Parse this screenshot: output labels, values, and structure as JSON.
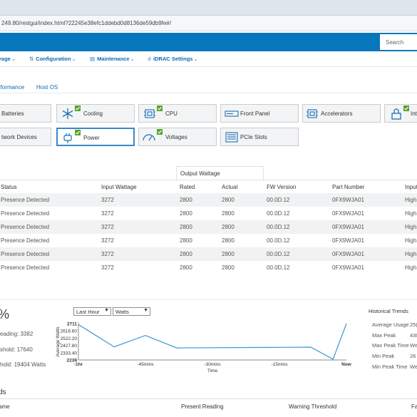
{
  "browser": {
    "url": "249.80/restgui/index.html?22245e38efc1ddebd0d8136de59db9fe#/"
  },
  "header": {
    "search_placeholder": "Search"
  },
  "nav": {
    "items": [
      {
        "label": "rage",
        "icon": "storage-icon"
      },
      {
        "label": "Configuration",
        "icon": "configuration-icon"
      },
      {
        "label": "Maintenance",
        "icon": "maintenance-icon"
      },
      {
        "label": "iDRAC Settings",
        "icon": "idrac-settings-icon"
      }
    ]
  },
  "subtabs": [
    "rformance",
    "Host OS"
  ],
  "tiles": [
    {
      "label": "Batteries",
      "check": false,
      "selected": false
    },
    {
      "label": "Cooling",
      "check": true,
      "selected": false
    },
    {
      "label": "CPU",
      "check": true,
      "selected": false
    },
    {
      "label": "Front Panel",
      "check": false,
      "selected": false
    },
    {
      "label": "Accelerators",
      "check": false,
      "selected": false
    },
    {
      "label": "Int",
      "check": true,
      "selected": false
    },
    {
      "label": "twork Devices",
      "check": false,
      "selected": false
    },
    {
      "label": "Power",
      "check": true,
      "selected": true
    },
    {
      "label": "Voltages",
      "check": true,
      "selected": false
    },
    {
      "label": "PCIe Slots",
      "check": false,
      "selected": false
    }
  ],
  "table": {
    "group_header": "Output Wattage",
    "columns": [
      "Status",
      "Input Wattage",
      "Rated",
      "Actual",
      "FW Version",
      "Part Number",
      "Input"
    ],
    "rows": [
      [
        "Presence Detected",
        "3272",
        "2800",
        "2800",
        "00.0D.12",
        "0FX9WJA01",
        "High"
      ],
      [
        "Presence Detected",
        "3272",
        "2800",
        "2800",
        "00.0D.12",
        "0FX9WJA01",
        "High"
      ],
      [
        "Presence Detected",
        "3272",
        "2800",
        "2800",
        "00.0D.12",
        "0FX9WJA01",
        "High"
      ],
      [
        "Presence Detected",
        "3272",
        "2800",
        "2800",
        "00.0D.12",
        "0FX9WJA01",
        "High"
      ],
      [
        "Presence Detected",
        "3272",
        "2800",
        "2800",
        "00.0D.12",
        "0FX9WJA01",
        "High"
      ],
      [
        "Presence Detected",
        "3272",
        "2800",
        "2800",
        "00.0D.12",
        "0FX9WJA01",
        "High"
      ]
    ]
  },
  "summary": {
    "percent": "%",
    "reading": "eading: 3382",
    "threshold": "shold: 17640",
    "failure_threshold": "hold: 19404 Watts"
  },
  "chart_controls": {
    "range": "Last Hour",
    "unit": "Watts"
  },
  "chart_data": {
    "type": "line",
    "x_ticks": [
      "-1hr",
      "-45mins",
      "-30mins",
      "-15mins",
      "Now"
    ],
    "x_values": [
      -60,
      -52,
      -45,
      -38,
      -30,
      -22,
      -15,
      -8,
      -3,
      0
    ],
    "y_values": [
      2700,
      2404,
      2554,
      2389,
      2392,
      2395,
      2397,
      2400,
      2240,
      2711
    ],
    "ylim": [
      2230,
      2711
    ],
    "y_ticks": [
      "2711",
      "2616.60",
      "2522.20",
      "2427.80",
      "2333.40",
      "2239"
    ],
    "xlabel": "Time",
    "ylabel": "Average Watts",
    "color": "#3a95d5"
  },
  "historical": {
    "title": "Historical Trends",
    "rows": [
      {
        "label": "Average Usage",
        "value": "25("
      },
      {
        "label": "Max Peak",
        "value": "430"
      },
      {
        "label": "Max Peak Time",
        "value": "We"
      },
      {
        "label": "Min Peak",
        "value": "26"
      },
      {
        "label": "Min Peak Time",
        "value": "We"
      }
    ]
  },
  "thresholds": {
    "title": "ds",
    "columns": [
      "ame",
      "Present Reading",
      "Warning Threshold",
      "Fa"
    ]
  },
  "colors": {
    "header": "#0677bd",
    "accent": "#0a6ab5",
    "check": "#58a428"
  }
}
